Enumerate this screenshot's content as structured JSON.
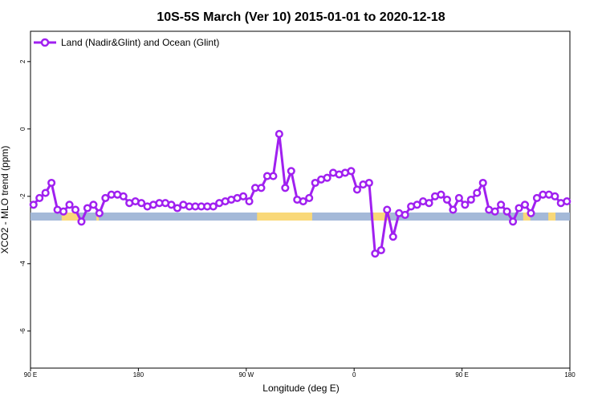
{
  "chart_data": {
    "type": "line",
    "title": "10S-5S March (Ver 10)   2015-01-01 to 2020-12-18",
    "xlabel": "Longitude (deg E)",
    "ylabel": "XCO2 - MLO trend (ppm)",
    "x_ticks": [
      {
        "value": 90,
        "label": "90 E"
      },
      {
        "value": 180,
        "label": "180"
      },
      {
        "value": 270,
        "label": "90 W"
      },
      {
        "value": 360,
        "label": "0"
      },
      {
        "value": 450,
        "label": "90 E"
      },
      {
        "value": 540,
        "label": "180"
      }
    ],
    "y_ticks": [
      {
        "value": 2,
        "label": "2"
      },
      {
        "value": 0,
        "label": "0"
      },
      {
        "value": -2,
        "label": "-2"
      },
      {
        "value": -4,
        "label": "-4"
      },
      {
        "value": -6,
        "label": "-6"
      }
    ],
    "xlim": [
      90,
      540
    ],
    "ylim": [
      -7.1,
      2.9
    ],
    "grid": false,
    "legend_position": "top-left",
    "series": [
      {
        "name": "Land (Nadir&Glint) and Ocean (Glint)",
        "color": "#a020f0",
        "x": [
          92.5,
          97.5,
          102.5,
          107.5,
          112.5,
          117.5,
          122.5,
          127.5,
          132.5,
          137.5,
          142.5,
          147.5,
          152.5,
          157.5,
          162.5,
          167.5,
          172.5,
          177.5,
          182.5,
          187.5,
          192.5,
          197.5,
          202.5,
          207.5,
          212.5,
          217.5,
          222.5,
          227.5,
          232.5,
          237.5,
          242.5,
          247.5,
          252.5,
          257.5,
          262.5,
          267.5,
          272.5,
          277.5,
          282.5,
          287.5,
          292.5,
          297.5,
          302.5,
          307.5,
          312.5,
          317.5,
          322.5,
          327.5,
          332.5,
          337.5,
          342.5,
          347.5,
          352.5,
          357.5,
          362.5,
          367.5,
          372.5,
          377.5,
          382.5,
          387.5,
          392.5,
          397.5,
          402.5,
          407.5,
          412.5,
          417.5,
          422.5,
          427.5,
          432.5,
          437.5,
          442.5,
          447.5,
          452.5,
          457.5,
          462.5,
          467.5,
          472.5,
          477.5,
          482.5,
          487.5,
          492.5,
          497.5,
          502.5,
          507.5,
          512.5,
          517.5,
          522.5,
          527.5,
          532.5,
          537.5
        ],
        "values": [
          -2.25,
          -2.05,
          -1.9,
          -1.6,
          -2.4,
          -2.45,
          -2.25,
          -2.4,
          -2.75,
          -2.35,
          -2.25,
          -2.5,
          -2.05,
          -1.95,
          -1.95,
          -2.0,
          -2.2,
          -2.15,
          -2.2,
          -2.3,
          -2.25,
          -2.2,
          -2.2,
          -2.25,
          -2.35,
          -2.25,
          -2.3,
          -2.3,
          -2.3,
          -2.3,
          -2.3,
          -2.2,
          -2.15,
          -2.1,
          -2.05,
          -2.0,
          -2.15,
          -1.75,
          -1.75,
          -1.4,
          -1.4,
          -0.15,
          -1.75,
          -1.25,
          -2.1,
          -2.15,
          -2.05,
          -1.6,
          -1.5,
          -1.45,
          -1.3,
          -1.35,
          -1.3,
          -1.25,
          -1.8,
          -1.65,
          -1.6,
          -3.7,
          -3.6,
          -2.4,
          -3.2,
          -2.5,
          -2.55,
          -2.3,
          -2.25,
          -2.15,
          -2.2,
          -2.0,
          -1.95,
          -2.1,
          -2.4,
          -2.05,
          -2.25,
          -2.1,
          -1.9,
          -1.6,
          -2.4,
          -2.45,
          -2.25,
          -2.45,
          -2.75,
          -2.35,
          -2.25,
          -2.5,
          -2.05,
          -1.95,
          -1.95,
          -2.0,
          -2.2,
          -2.15
        ]
      }
    ],
    "surface_strip": {
      "y_value": -2.6,
      "ocean_color": "#a4b9d8",
      "land_color": "#f9d878",
      "land_ranges": [
        [
          116,
          130
        ],
        [
          145,
          147
        ],
        [
          279,
          325
        ],
        [
          376,
          390
        ],
        [
          501,
          507
        ],
        [
          522,
          528
        ]
      ]
    }
  }
}
